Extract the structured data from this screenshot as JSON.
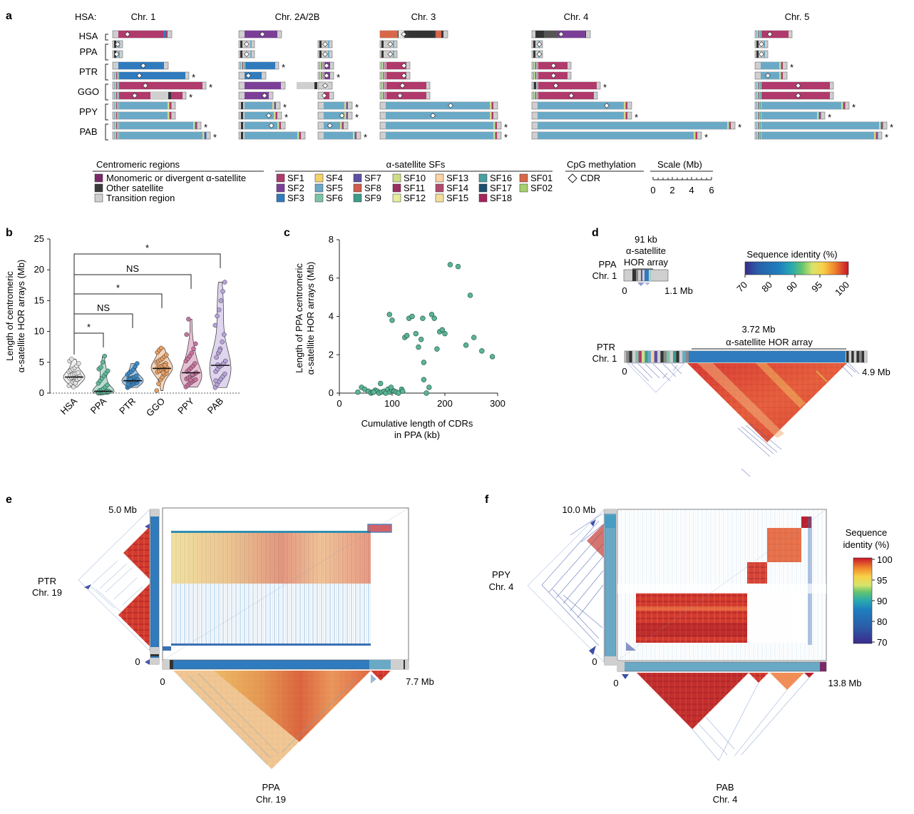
{
  "panel_letters": {
    "a": "a",
    "b": "b",
    "c": "c",
    "d": "d",
    "e": "e",
    "f": "f"
  },
  "colors": {
    "SF1": "#b03a6b",
    "SF2": "#7b3f98",
    "SF3": "#2f7bbd",
    "SF4": "#f4d26a",
    "SF5": "#6aa9c6",
    "SF6": "#7cc4a5",
    "SF7": "#5d4fa3",
    "SF8": "#cf5c4e",
    "SF9": "#3d9c8c",
    "SF10": "#cfdd86",
    "SF11": "#9b2d5f",
    "SF12": "#e8ec9c",
    "SF13": "#f9d3a6",
    "SF14": "#b24a6e",
    "SF15": "#f3dd9a",
    "SF16": "#4a9fa0",
    "SF17": "#1d4f6e",
    "SF18": "#a4245b",
    "SF01": "#d8674a",
    "SF02": "#a6cf6e",
    "monomeric": "#7a2a69",
    "other_satellite": "#3a3a3a",
    "transition": "#cfcfcf",
    "HSA": "#e2e2e2",
    "PPA": "#5fb89a",
    "PTR": "#3b88c4",
    "GGO": "#e8a064",
    "PPY": "#c9739f",
    "PAB": "#b7a2d9",
    "scatter": "#5ab495"
  },
  "panel_a": {
    "hsa_label": "HSA:",
    "chromosomes": [
      "Chr. 1",
      "Chr. 2A/2B",
      "Chr. 3",
      "Chr. 4",
      "Chr. 5"
    ],
    "species": [
      "HSA",
      "PPA",
      "PTR",
      "GGO",
      "PPY",
      "PAB"
    ],
    "star": "*",
    "legend_regions": {
      "title": "Centromeric regions",
      "items": [
        "Monomeric or divergent α-satellite",
        "Other satellite",
        "Transition region"
      ]
    },
    "legend_sf": {
      "title": "α-satellite SFs",
      "items": [
        "SF1",
        "SF4",
        "SF7",
        "SF10",
        "SF13",
        "SF16",
        "SF01",
        "SF2",
        "SF5",
        "SF8",
        "SF11",
        "SF14",
        "SF17",
        "SF02",
        "SF3",
        "SF6",
        "SF9",
        "SF12",
        "SF15",
        "SF18"
      ]
    },
    "legend_cpg": {
      "title": "CpG methylation",
      "item": "CDR"
    },
    "legend_scale": {
      "title": "Scale (Mb)",
      "ticks": [
        "0",
        "2",
        "4",
        "6"
      ]
    }
  },
  "panel_b": {
    "ylabel_line1": "Length of centromeric",
    "ylabel_line2": "α-satellite HOR arrays (Mb)",
    "yticks": [
      "0",
      "5",
      "10",
      "15",
      "20",
      "25"
    ],
    "sig_labels": [
      "*",
      "NS",
      "*",
      "NS",
      "*"
    ],
    "chart_data": {
      "type": "violin",
      "categories": [
        "HSA",
        "PPA",
        "PTR",
        "GGO",
        "PPY",
        "PAB"
      ],
      "ylim": [
        0,
        25
      ],
      "medians": [
        2.6,
        0.3,
        2.0,
        4.0,
        3.3,
        4.5
      ],
      "points": [
        [
          1.2,
          1.5,
          1.8,
          2.0,
          2.1,
          2.3,
          2.4,
          2.5,
          2.6,
          2.6,
          2.7,
          2.8,
          2.9,
          3.0,
          3.1,
          3.2,
          3.3,
          3.5,
          3.7,
          3.9,
          4.1,
          4.4,
          4.8,
          5.2,
          5.5,
          1.0,
          1.6,
          2.2,
          2.4
        ],
        [
          0.0,
          0.0,
          0.0,
          0.1,
          0.1,
          0.1,
          0.1,
          0.2,
          0.2,
          0.2,
          0.3,
          0.3,
          0.4,
          0.5,
          0.7,
          1.0,
          1.3,
          1.6,
          2.0,
          2.4,
          2.8,
          3.2,
          3.6,
          3.9,
          4.2,
          5.0,
          6.0
        ],
        [
          0.9,
          1.1,
          1.3,
          1.5,
          1.6,
          1.7,
          1.8,
          1.9,
          2.0,
          2.0,
          2.1,
          2.2,
          2.3,
          2.4,
          2.5,
          2.6,
          2.8,
          3.0,
          3.3,
          3.5,
          3.8,
          4.3,
          4.8,
          1.4,
          2.2
        ],
        [
          0.4,
          1.5,
          2.2,
          2.6,
          3.0,
          3.2,
          3.4,
          3.6,
          3.8,
          3.9,
          4.0,
          4.1,
          4.2,
          4.3,
          4.4,
          4.6,
          4.8,
          5.0,
          5.2,
          5.4,
          5.6,
          5.9,
          6.2,
          6.6,
          7.0,
          7.3,
          3.3,
          4.5,
          3.7
        ],
        [
          1.0,
          1.3,
          1.6,
          1.8,
          2.0,
          2.2,
          2.3,
          2.5,
          2.7,
          2.9,
          3.1,
          3.3,
          3.5,
          3.8,
          4.1,
          4.4,
          4.8,
          5.2,
          5.6,
          6.0,
          6.5,
          7.2,
          8.0,
          9.5,
          12.0,
          2.1,
          3.0
        ],
        [
          0.9,
          1.4,
          1.9,
          2.3,
          2.7,
          3.1,
          3.5,
          3.9,
          4.3,
          4.5,
          4.8,
          5.2,
          5.8,
          6.5,
          7.2,
          8.3,
          9.5,
          11.0,
          12.5,
          13.5,
          15.0,
          16.5,
          18.0,
          2.0,
          4.6,
          6.9
        ]
      ]
    }
  },
  "panel_c": {
    "ylabel_line1": "Length of PPA centromeric",
    "ylabel_line2": "α-satellite HOR arrays (Mb)",
    "xlabel_line1": "Cumulative length of CDRs",
    "xlabel_line2": "in PPA (kb)",
    "xticks": [
      "0",
      "100",
      "200",
      "300"
    ],
    "yticks": [
      "0",
      "2",
      "4",
      "6",
      "8"
    ],
    "chart_data": {
      "type": "scatter",
      "xlim": [
        0,
        300
      ],
      "ylim": [
        0,
        8
      ],
      "x": [
        35,
        42,
        48,
        55,
        60,
        63,
        68,
        72,
        75,
        80,
        85,
        88,
        92,
        96,
        100,
        104,
        108,
        112,
        118,
        65,
        78,
        98,
        120,
        124,
        128,
        132,
        138,
        145,
        150,
        155,
        160,
        165,
        170,
        175,
        180,
        185,
        190,
        195,
        200,
        210,
        225,
        240,
        255,
        270,
        290,
        248,
        95,
        100,
        158,
        160
      ],
      "y": [
        0.05,
        0.3,
        0.2,
        0.1,
        0.0,
        0.05,
        0.15,
        0.1,
        0.0,
        0.05,
        0.1,
        0.0,
        0.2,
        0.05,
        0.15,
        0.1,
        0.05,
        0.0,
        0.2,
        0.05,
        0.5,
        0.3,
        0.1,
        2.9,
        3.0,
        3.9,
        4.0,
        3.1,
        2.4,
        2.8,
        0.7,
        0.0,
        0.3,
        4.1,
        3.9,
        2.3,
        3.2,
        3.3,
        3.1,
        6.7,
        6.6,
        2.5,
        2.9,
        2.2,
        1.9,
        5.1,
        4.1,
        3.8,
        3.9,
        1.6
      ]
    }
  },
  "panel_d": {
    "top_label_line1": "91 kb",
    "top_label_line2": "α-satellite",
    "top_label_line3": "HOR array",
    "ppa_line1": "PPA",
    "ppa_line2": "Chr. 1",
    "ppa_start": "0",
    "ppa_end": "1.1 Mb",
    "colorbar_title": "Sequence identity (%)",
    "colorbar_ticks": [
      "70",
      "80",
      "90",
      "95",
      "100"
    ],
    "ptr_array_line1": "3.72 Mb",
    "ptr_array_line2": "α-satellite HOR array",
    "ptr_line1": "PTR",
    "ptr_line2": "Chr. 1",
    "ptr_start": "0",
    "ptr_end": "4.9 Mb"
  },
  "panel_e": {
    "ymax": "5.0 Mb",
    "ymin": "0",
    "xmin": "0",
    "xmax": "7.7 Mb",
    "ptr_line1": "PTR",
    "ptr_line2": "Chr. 19",
    "ppa_line1": "PPA",
    "ppa_line2": "Chr. 19"
  },
  "panel_f": {
    "ymax": "10.0 Mb",
    "ymin": "0",
    "xmin": "0",
    "xmax": "13.8 Mb",
    "ppy_line1": "PPY",
    "ppy_line2": "Chr. 4",
    "pab_line1": "PAB",
    "pab_line2": "Chr. 4",
    "colorbar_title_line1": "Sequence",
    "colorbar_title_line2": "identity (%)",
    "colorbar_ticks": [
      "100",
      "95",
      "90",
      "80",
      "70"
    ]
  }
}
